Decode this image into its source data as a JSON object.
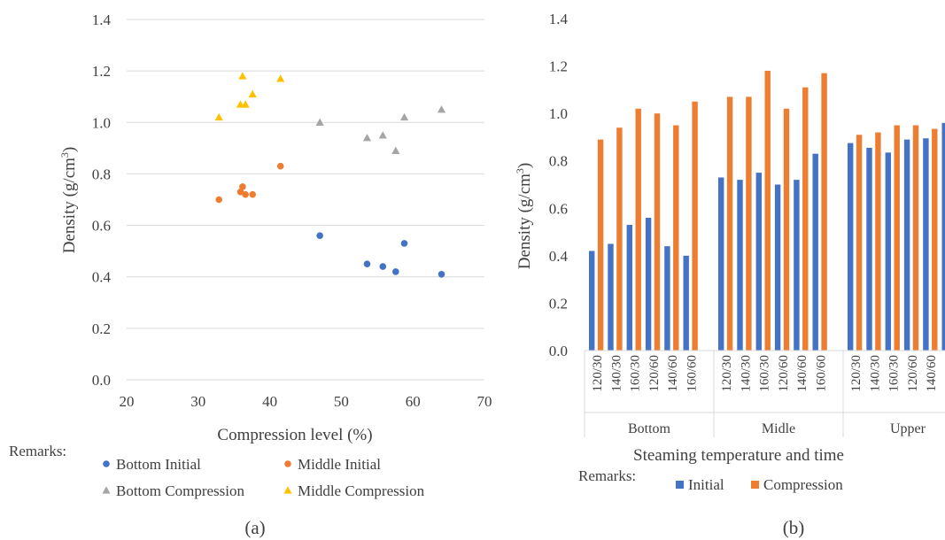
{
  "chart_data": [
    {
      "type": "scatter",
      "xlabel": "Compression level (%)",
      "ylabel": "Density (g/cm3)",
      "xlim": [
        20,
        70
      ],
      "ylim": [
        0,
        1.4
      ],
      "xticks": [
        20,
        30,
        40,
        50,
        60,
        70
      ],
      "xtick_labels": [
        "20",
        "30",
        "40",
        "50",
        "60",
        "70"
      ],
      "yticks": [
        0,
        0.2,
        0.4,
        0.6,
        0.8,
        1.0,
        1.2,
        1.4
      ],
      "ytick_labels": [
        "0.0",
        "0.2",
        "0.4",
        "0.6",
        "0.8",
        "1.0",
        "1.2",
        "1.4"
      ],
      "grid": "horizontal",
      "legend_title": "Remarks:",
      "legend_position": "bottom",
      "panel_label": "(a)",
      "series": [
        {
          "name": "Bottom Initial",
          "color": "#4472c4",
          "marker": "circle",
          "x": [
            47.0,
            53.6,
            55.8,
            57.6,
            58.8,
            64.0
          ],
          "y": [
            0.56,
            0.45,
            0.44,
            0.42,
            0.53,
            0.41
          ]
        },
        {
          "name": "Middle Initial",
          "color": "#ed7d31",
          "marker": "circle",
          "x": [
            32.9,
            35.9,
            36.2,
            36.6,
            37.6,
            41.5
          ],
          "y": [
            0.7,
            0.73,
            0.75,
            0.72,
            0.72,
            0.83
          ]
        },
        {
          "name": "Bottom Compression",
          "color": "#a5a5a5",
          "marker": "triangle",
          "x": [
            47.0,
            53.6,
            55.8,
            57.6,
            58.8,
            64.0
          ],
          "y": [
            1.0,
            0.94,
            0.95,
            0.89,
            1.02,
            1.05
          ]
        },
        {
          "name": "Middle Compression",
          "color": "#ffc000",
          "marker": "triangle",
          "x": [
            32.9,
            35.9,
            36.2,
            36.6,
            37.6,
            41.5
          ],
          "y": [
            1.02,
            1.07,
            1.18,
            1.07,
            1.11,
            1.17
          ]
        }
      ]
    },
    {
      "type": "bar",
      "xlabel": "Steaming temperature and time",
      "ylabel": "Density (g/cm3)",
      "ylim": [
        0,
        1.4
      ],
      "yticks": [
        0,
        0.2,
        0.4,
        0.6,
        0.8,
        1.0,
        1.2,
        1.4
      ],
      "ytick_labels": [
        "0.0",
        "0.2",
        "0.4",
        "0.6",
        "0.8",
        "1.0",
        "1.2",
        "1.4"
      ],
      "grid": "none",
      "legend_title": "Remarks:",
      "legend_position": "bottom",
      "panel_label": "(b)",
      "groups": [
        {
          "label": "Bottom",
          "categories": [
            "120/30",
            "140/30",
            "160/30",
            "120/60",
            "140/60",
            "160/60"
          ]
        },
        {
          "label": "Midle",
          "categories": [
            "120/30",
            "140/30",
            "160/30",
            "120/60",
            "140/60",
            "160/60"
          ]
        },
        {
          "label": "Upper",
          "categories": [
            "120/30",
            "140/30",
            "160/30",
            "120/60",
            "140/60",
            "160/60"
          ]
        }
      ],
      "series": [
        {
          "name": "Initial",
          "color": "#4472c4",
          "values": [
            [
              0.42,
              0.45,
              0.53,
              0.56,
              0.44,
              0.4
            ],
            [
              0.73,
              0.72,
              0.75,
              0.7,
              0.72,
              0.83
            ],
            [
              0.875,
              0.855,
              0.835,
              0.89,
              0.895,
              0.96
            ]
          ]
        },
        {
          "name": "Compression",
          "color": "#ed7d31",
          "values": [
            [
              0.89,
              0.94,
              1.02,
              1.0,
              0.95,
              1.05
            ],
            [
              1.07,
              1.07,
              1.18,
              1.02,
              1.11,
              1.17
            ],
            [
              0.91,
              0.92,
              0.95,
              0.95,
              0.935,
              0.95
            ]
          ]
        }
      ]
    }
  ]
}
